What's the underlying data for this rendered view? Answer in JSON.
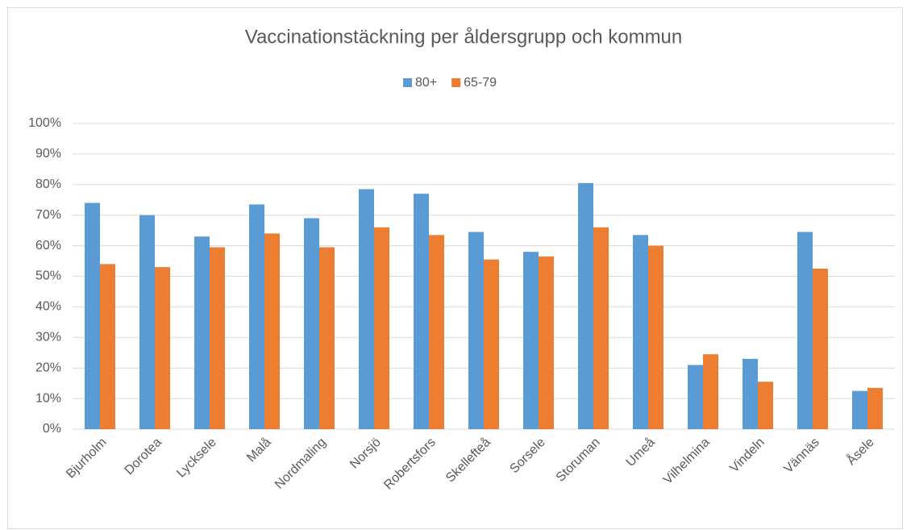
{
  "chart_data": {
    "type": "bar",
    "title": "Vaccinationstäckning per åldersgrupp och kommun",
    "categories": [
      "Bjurholm",
      "Dorotea",
      "Lycksele",
      "Malå",
      "Nordmaling",
      "Norsjö",
      "Robertsfors",
      "Skellefteå",
      "Sorsele",
      "Storuman",
      "Umeå",
      "Vilhelmina",
      "Vindeln",
      "Vännäs",
      "Åsele"
    ],
    "series": [
      {
        "name": "80+",
        "color": "#5b9bd5",
        "values": [
          74,
          70,
          63,
          73.5,
          69,
          78.5,
          77,
          64.5,
          58,
          80.5,
          63.5,
          21,
          23,
          64.5,
          12.5
        ]
      },
      {
        "name": "65-79",
        "color": "#ed7d31",
        "values": [
          54,
          53,
          59.5,
          64,
          59.5,
          66,
          63.5,
          55.5,
          56.5,
          66,
          60,
          24.5,
          15.5,
          52.5,
          13.5
        ]
      }
    ],
    "ylim": [
      0,
      100
    ],
    "yticks": [
      {
        "value": 0,
        "label": "0%"
      },
      {
        "value": 10,
        "label": "10%"
      },
      {
        "value": 20,
        "label": "20%"
      },
      {
        "value": 30,
        "label": "30%"
      },
      {
        "value": 40,
        "label": "40%"
      },
      {
        "value": 50,
        "label": "50%"
      },
      {
        "value": 60,
        "label": "60%"
      },
      {
        "value": 70,
        "label": "70%"
      },
      {
        "value": 80,
        "label": "80%"
      },
      {
        "value": 90,
        "label": "90%"
      },
      {
        "value": 100,
        "label": "100%"
      }
    ],
    "grid": true,
    "legend": "top"
  }
}
